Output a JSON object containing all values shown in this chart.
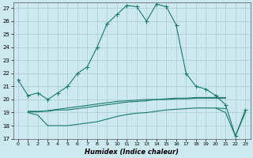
{
  "xlabel": "Humidex (Indice chaleur)",
  "bg_color": "#cce9f0",
  "grid_color": "#b0d0d8",
  "line_color": "#1a7a6e",
  "xlim": [
    -0.5,
    23.5
  ],
  "ylim": [
    17,
    27.4
  ],
  "xticks": [
    0,
    1,
    2,
    3,
    4,
    5,
    6,
    7,
    8,
    9,
    10,
    11,
    12,
    13,
    14,
    15,
    16,
    17,
    18,
    19,
    20,
    21,
    22,
    23
  ],
  "yticks": [
    17,
    18,
    19,
    20,
    21,
    22,
    23,
    24,
    25,
    26,
    27
  ],
  "series_main": {
    "x": [
      0,
      1,
      2,
      3,
      4,
      5,
      6,
      7,
      8,
      9,
      10,
      11,
      12,
      13,
      14,
      15,
      16,
      17,
      18,
      19,
      20
    ],
    "y": [
      21.5,
      20.3,
      20.5,
      20.0,
      20.5,
      21.0,
      22.0,
      22.5,
      24.0,
      25.8,
      26.5,
      27.2,
      27.1,
      26.0,
      27.3,
      27.1,
      25.7,
      22.0,
      21.0,
      20.8,
      20.3
    ]
  },
  "series_flat1": {
    "x": [
      1,
      2,
      3,
      4,
      5,
      6,
      7,
      8,
      9,
      10,
      11,
      12,
      13,
      14,
      15,
      16,
      17,
      18,
      19,
      20,
      21
    ],
    "y": [
      19.1,
      19.1,
      19.1,
      19.2,
      19.2,
      19.3,
      19.4,
      19.5,
      19.6,
      19.7,
      19.8,
      19.85,
      19.9,
      20.0,
      20.0,
      20.05,
      20.05,
      20.1,
      20.1,
      20.1,
      20.1
    ]
  },
  "series_flat2": {
    "x": [
      1,
      2,
      3,
      4,
      5,
      6,
      7,
      8,
      9,
      10,
      11,
      12,
      13,
      14,
      15,
      16,
      17,
      18,
      19,
      20,
      21
    ],
    "y": [
      19.0,
      18.8,
      18.0,
      18.0,
      18.0,
      18.1,
      18.2,
      18.3,
      18.5,
      18.7,
      18.85,
      18.95,
      19.0,
      19.1,
      19.2,
      19.25,
      19.3,
      19.35,
      19.35,
      19.35,
      19.3
    ]
  },
  "series_flat3": {
    "x": [
      1,
      2,
      3,
      4,
      5,
      6,
      7,
      8,
      9,
      10,
      11,
      12,
      13,
      14,
      15,
      16,
      17,
      18,
      19,
      20,
      21
    ],
    "y": [
      19.05,
      19.05,
      19.15,
      19.25,
      19.35,
      19.45,
      19.55,
      19.65,
      19.75,
      19.85,
      19.9,
      19.95,
      20.0,
      20.0,
      20.05,
      20.1,
      20.1,
      20.15,
      20.15,
      20.15,
      20.15
    ]
  },
  "series_spike": {
    "x": [
      20,
      21,
      22,
      23
    ],
    "y": [
      20.3,
      19.6,
      17.2,
      19.2
    ]
  },
  "series_spike2": {
    "x": [
      20,
      21,
      22,
      23
    ],
    "y": [
      19.35,
      19.0,
      17.2,
      19.0
    ]
  }
}
